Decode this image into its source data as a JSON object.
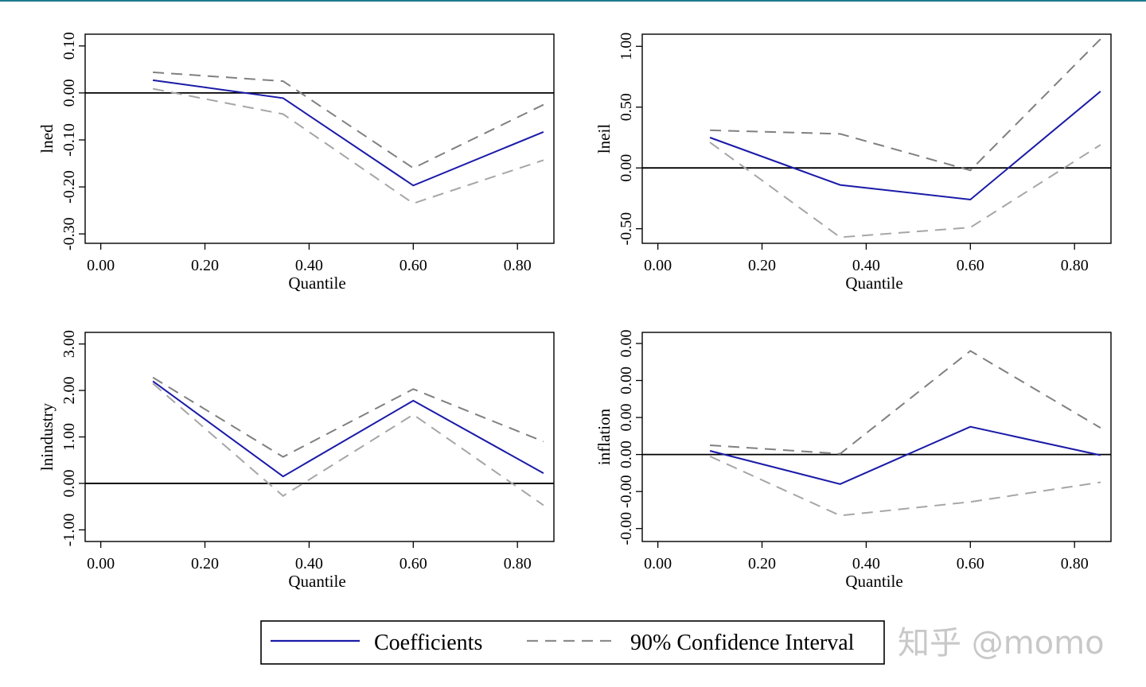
{
  "chart_data": [
    {
      "type": "line",
      "xlabel": "Quantile",
      "ylabel": "lned",
      "xlim": [
        -0.03,
        0.87
      ],
      "ylim": [
        -0.32,
        0.125
      ],
      "xticks": [
        "0.00",
        "0.20",
        "0.40",
        "0.60",
        "0.80"
      ],
      "yticks": [
        {
          "v": -0.3,
          "label": "-0.30"
        },
        {
          "v": -0.2,
          "label": "-0.20"
        },
        {
          "v": -0.1,
          "label": "-0.10"
        },
        {
          "v": 0.0,
          "label": "0.00"
        },
        {
          "v": 0.1,
          "label": "0.10"
        }
      ],
      "x": [
        0.1,
        0.35,
        0.6,
        0.85
      ],
      "series": [
        {
          "name": "Coefficients",
          "role": "coef",
          "values": [
            0.027,
            -0.011,
            -0.197,
            -0.083
          ]
        },
        {
          "name": "90% Confidence Interval",
          "role": "upper",
          "values": [
            0.044,
            0.025,
            -0.16,
            -0.025
          ]
        },
        {
          "name": "90% Confidence Interval",
          "role": "lower",
          "values": [
            0.009,
            -0.045,
            -0.235,
            -0.143
          ]
        }
      ],
      "zero_line": 0
    },
    {
      "type": "line",
      "xlabel": "Quantile",
      "ylabel": "lneil",
      "xlim": [
        -0.03,
        0.87
      ],
      "ylim": [
        -0.62,
        1.1
      ],
      "xticks": [
        "0.00",
        "0.20",
        "0.40",
        "0.60",
        "0.80"
      ],
      "yticks": [
        {
          "v": -0.5,
          "label": "-0.50"
        },
        {
          "v": 0.0,
          "label": "0.00"
        },
        {
          "v": 0.5,
          "label": "0.50"
        },
        {
          "v": 1.0,
          "label": "1.00"
        }
      ],
      "x": [
        0.1,
        0.35,
        0.6,
        0.85
      ],
      "series": [
        {
          "name": "Coefficients",
          "role": "coef",
          "values": [
            0.25,
            -0.14,
            -0.26,
            0.63
          ]
        },
        {
          "name": "90% Confidence Interval",
          "role": "upper",
          "values": [
            0.31,
            0.28,
            -0.02,
            1.06
          ]
        },
        {
          "name": "90% Confidence Interval",
          "role": "lower",
          "values": [
            0.21,
            -0.57,
            -0.49,
            0.19
          ]
        }
      ],
      "zero_line": 0
    },
    {
      "type": "line",
      "xlabel": "Quantile",
      "ylabel": "lnindustry",
      "xlim": [
        -0.03,
        0.87
      ],
      "ylim": [
        -1.25,
        3.25
      ],
      "xticks": [
        "0.00",
        "0.20",
        "0.40",
        "0.60",
        "0.80"
      ],
      "yticks": [
        {
          "v": -1.0,
          "label": "-1.00"
        },
        {
          "v": 0.0,
          "label": "0.00"
        },
        {
          "v": 1.0,
          "label": "1.00"
        },
        {
          "v": 2.0,
          "label": "2.00"
        },
        {
          "v": 3.0,
          "label": "3.00"
        }
      ],
      "x": [
        0.1,
        0.35,
        0.6,
        0.85
      ],
      "series": [
        {
          "name": "Coefficients",
          "role": "coef",
          "values": [
            2.2,
            0.15,
            1.78,
            0.22
          ]
        },
        {
          "name": "90% Confidence Interval",
          "role": "upper",
          "values": [
            2.28,
            0.57,
            2.03,
            0.9
          ]
        },
        {
          "name": "90% Confidence Interval",
          "role": "lower",
          "values": [
            2.15,
            -0.27,
            1.48,
            -0.47
          ]
        }
      ],
      "zero_line": 0
    },
    {
      "type": "line",
      "xlabel": "Quantile",
      "ylabel": "inflation",
      "xlim": [
        -0.03,
        0.87
      ],
      "ylim": [
        -2.35,
        3.3
      ],
      "xticks": [
        "0.00",
        "0.20",
        "0.40",
        "0.60",
        "0.80"
      ],
      "yticks": [
        {
          "v": -2.0,
          "label": "-0.00"
        },
        {
          "v": -1.0,
          "label": "-0.00"
        },
        {
          "v": 0.0,
          "label": "0.00"
        },
        {
          "v": 1.0,
          "label": "0.00"
        },
        {
          "v": 2.0,
          "label": "0.00"
        },
        {
          "v": 3.0,
          "label": "0.00"
        }
      ],
      "x": [
        0.1,
        0.35,
        0.6,
        0.85
      ],
      "series": [
        {
          "name": "Coefficients",
          "role": "coef",
          "values": [
            0.1,
            -0.8,
            0.75,
            -0.02
          ]
        },
        {
          "name": "90% Confidence Interval",
          "role": "upper",
          "values": [
            0.25,
            0.02,
            2.8,
            0.72
          ]
        },
        {
          "name": "90% Confidence Interval",
          "role": "lower",
          "values": [
            -0.05,
            -1.65,
            -1.28,
            -0.75
          ]
        }
      ],
      "zero_line": 0
    }
  ],
  "legend": {
    "placement": "bottom-center",
    "items": [
      {
        "label": "Coefficients",
        "color": "#1a1aa8",
        "style": "solid"
      },
      {
        "label": "90% Confidence Interval",
        "color": "#8c8c8c",
        "style": "dashed"
      }
    ]
  },
  "colors": {
    "coef": "#1a1aa8",
    "upper": "#808080",
    "lower": "#a6a6a6",
    "zero": "#000000"
  },
  "watermark": "知乎 @momo"
}
